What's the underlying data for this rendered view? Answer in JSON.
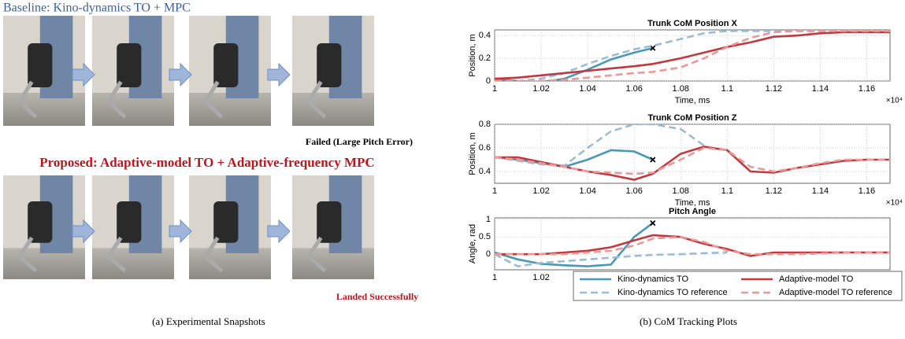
{
  "figure": {
    "baseline_title": "Baseline: Kino-dynamics TO + MPC",
    "failed_label": "Failed (Large Pitch Error)",
    "proposed_title": "Proposed: Adaptive-model TO + Adaptive-frequency MPC",
    "success_label": "Landed Successfully",
    "caption_a": "(a) Experimental Snapshots",
    "caption_b": "(b) CoM Tracking Plots"
  },
  "chart_data": [
    {
      "type": "line",
      "title": "Trunk CoM Position X",
      "x_label": "Time, ms",
      "y_label": "Position, m",
      "x_exponent_label": "×10⁴",
      "x": [
        1,
        1.01,
        1.02,
        1.03,
        1.04,
        1.05,
        1.06,
        1.068,
        1.08,
        1.09,
        1.1,
        1.11,
        1.12,
        1.13,
        1.14,
        1.15,
        1.16,
        1.17
      ],
      "xlim": [
        1,
        1.17
      ],
      "xticks": [
        1,
        1.02,
        1.04,
        1.06,
        1.08,
        1.1,
        1.12,
        1.14,
        1.16
      ],
      "ylim": [
        0,
        0.45
      ],
      "yticks": [
        0,
        0.2,
        0.4
      ],
      "grid": true,
      "series": [
        {
          "color": "#4a98b4",
          "dash": false,
          "values": [
            0.02,
            0.0,
            -0.01,
            0.02,
            0.1,
            0.19,
            0.25,
            0.29,
            null,
            null,
            null,
            null,
            null,
            null,
            null,
            null,
            null,
            null
          ]
        },
        {
          "color": "#9bbcd4",
          "dash": true,
          "values": [
            0.0,
            0.0,
            0.02,
            0.07,
            0.15,
            0.22,
            0.28,
            0.31,
            0.37,
            0.42,
            0.44,
            0.44,
            0.44,
            0.44,
            0.44,
            0.44,
            0.44,
            0.44
          ]
        },
        {
          "color": "#c2383e",
          "dash": false,
          "values": [
            0.02,
            0.03,
            0.05,
            0.07,
            0.09,
            0.11,
            0.13,
            0.15,
            0.2,
            0.25,
            0.3,
            0.34,
            0.39,
            0.4,
            0.42,
            0.43,
            0.43,
            0.43
          ]
        },
        {
          "color": "#eb9898",
          "dash": true,
          "values": [
            0.0,
            0.0,
            0.0,
            0.01,
            0.03,
            0.05,
            0.07,
            0.08,
            0.12,
            0.2,
            0.3,
            0.38,
            0.43,
            0.44,
            0.44,
            0.44,
            0.44,
            0.44
          ]
        }
      ]
    },
    {
      "type": "line",
      "title": "Trunk CoM Position Z",
      "x_label": "Time, ms",
      "y_label": "Position, m",
      "x_exponent_label": "×10⁴",
      "x": [
        1,
        1.01,
        1.02,
        1.03,
        1.04,
        1.05,
        1.06,
        1.068,
        1.08,
        1.09,
        1.1,
        1.11,
        1.12,
        1.13,
        1.14,
        1.15,
        1.16,
        1.17
      ],
      "xlim": [
        1,
        1.17
      ],
      "xticks": [
        1,
        1.02,
        1.04,
        1.06,
        1.08,
        1.1,
        1.12,
        1.14,
        1.16
      ],
      "ylim": [
        0.3,
        0.8
      ],
      "yticks": [
        0.4,
        0.6,
        0.8
      ],
      "grid": true,
      "series": [
        {
          "color": "#4a98b4",
          "dash": false,
          "values": [
            0.52,
            0.5,
            0.47,
            0.44,
            0.5,
            0.58,
            0.57,
            0.5,
            null,
            null,
            null,
            null,
            null,
            null,
            null,
            null,
            null,
            null
          ]
        },
        {
          "color": "#9bbcd4",
          "dash": true,
          "values": [
            0.52,
            0.49,
            0.46,
            0.45,
            0.6,
            0.74,
            0.8,
            0.8,
            0.76,
            0.62,
            null,
            null,
            null,
            null,
            null,
            null,
            null,
            null
          ]
        },
        {
          "color": "#c2383e",
          "dash": false,
          "values": [
            0.52,
            0.52,
            0.48,
            0.44,
            0.4,
            0.37,
            0.33,
            0.38,
            0.55,
            0.61,
            0.58,
            0.4,
            0.39,
            0.43,
            0.46,
            0.49,
            0.5,
            0.5
          ]
        },
        {
          "color": "#eb9898",
          "dash": true,
          "values": [
            0.52,
            0.5,
            0.47,
            0.44,
            0.4,
            0.39,
            0.38,
            0.39,
            0.5,
            0.6,
            0.58,
            0.44,
            0.4,
            0.43,
            0.47,
            0.5,
            0.5,
            0.5
          ]
        }
      ]
    },
    {
      "type": "line",
      "title": "Pitch Angle",
      "y_label": "Angle, rad",
      "x": [
        1,
        1.01,
        1.02,
        1.03,
        1.04,
        1.05,
        1.06,
        1.068,
        1.08,
        1.09,
        1.1,
        1.11,
        1.12,
        1.13,
        1.14,
        1.15,
        1.16,
        1.17
      ],
      "xlim": [
        1,
        1.17
      ],
      "xticks": [
        1,
        1.02
      ],
      "ylim": [
        -0.45,
        1.05
      ],
      "yticks": [
        0,
        0.5,
        1
      ],
      "grid": true,
      "legend": true,
      "series": [
        {
          "name": "Kino-dynamics TO",
          "color": "#4a98b4",
          "dash": false,
          "values": [
            0.05,
            -0.15,
            -0.28,
            -0.32,
            -0.35,
            -0.3,
            0.5,
            0.9,
            null,
            null,
            null,
            null,
            null,
            null,
            null,
            null,
            null,
            null
          ]
        },
        {
          "name": "Kino-dynamics TO reference",
          "color": "#9bbcd4",
          "dash": true,
          "values": [
            0.0,
            -0.35,
            -0.25,
            -0.2,
            -0.15,
            -0.1,
            -0.05,
            -0.02,
            0.0,
            0.03,
            0.05,
            null,
            null,
            null,
            null,
            null,
            null,
            null
          ]
        },
        {
          "name": "Adaptive-model TO",
          "color": "#c2383e",
          "dash": false,
          "values": [
            0.0,
            0.0,
            0.0,
            0.05,
            0.1,
            0.2,
            0.4,
            0.55,
            0.5,
            0.3,
            0.15,
            -0.05,
            0.05,
            0.05,
            0.05,
            0.05,
            0.05,
            0.05
          ]
        },
        {
          "name": "Adaptive-model TO reference",
          "color": "#eb9898",
          "dash": true,
          "values": [
            0,
            0,
            0,
            0,
            0.05,
            0.1,
            0.25,
            0.45,
            0.5,
            0.35,
            0.1,
            0,
            0,
            0,
            0.02,
            0.05,
            0.05,
            0.05
          ]
        }
      ]
    }
  ]
}
